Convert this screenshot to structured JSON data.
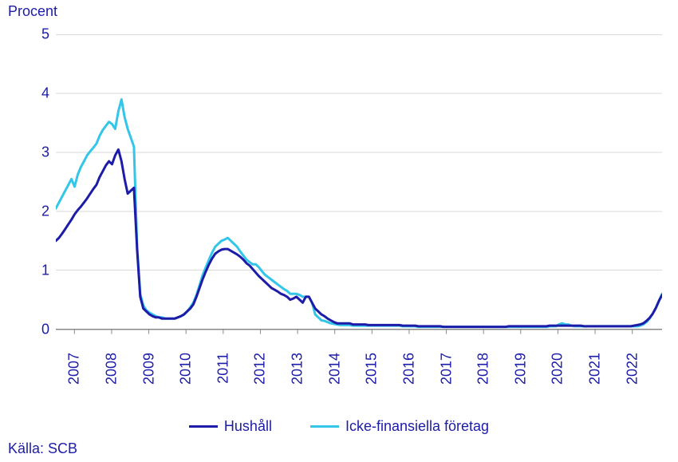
{
  "chart": {
    "type": "line",
    "y_title": "Procent",
    "source_label": "Källa: SCB",
    "title_color": "#1c1ca8",
    "title_fontsize": 18,
    "label_fontsize": 18,
    "background_color": "#ffffff",
    "plot_background": "#ffffff",
    "grid_color": "#d9d9d9",
    "axis_color": "#888888",
    "line_width": 3,
    "x_start_year": 2006.5,
    "x_end_year": 2022.8,
    "x_tick_years": [
      2007,
      2008,
      2009,
      2010,
      2011,
      2012,
      2013,
      2014,
      2015,
      2016,
      2017,
      2018,
      2019,
      2020,
      2021,
      2022
    ],
    "ylim": [
      -0.25,
      5.1
    ],
    "y_ticks": [
      0,
      1,
      2,
      3,
      4,
      5
    ],
    "legend": {
      "series_a_label": "Hushåll",
      "series_b_label": "Icke-finansiella företag"
    },
    "series_a": {
      "name": "Hushåll",
      "color": "#1c1ca8",
      "values": [
        1.5,
        1.55,
        1.62,
        1.7,
        1.78,
        1.86,
        1.95,
        2.02,
        2.08,
        2.15,
        2.22,
        2.3,
        2.38,
        2.45,
        2.58,
        2.68,
        2.78,
        2.85,
        2.8,
        2.95,
        3.05,
        2.85,
        2.55,
        2.3,
        2.35,
        2.4,
        1.35,
        0.55,
        0.35,
        0.3,
        0.25,
        0.22,
        0.2,
        0.2,
        0.18,
        0.18,
        0.18,
        0.18,
        0.18,
        0.2,
        0.22,
        0.25,
        0.3,
        0.35,
        0.42,
        0.55,
        0.7,
        0.85,
        0.98,
        1.1,
        1.2,
        1.28,
        1.32,
        1.35,
        1.36,
        1.36,
        1.33,
        1.3,
        1.27,
        1.23,
        1.18,
        1.12,
        1.08,
        1.02,
        0.96,
        0.9,
        0.85,
        0.8,
        0.75,
        0.7,
        0.67,
        0.64,
        0.6,
        0.58,
        0.55,
        0.5,
        0.52,
        0.55,
        0.5,
        0.45,
        0.55,
        0.55,
        0.45,
        0.35,
        0.3,
        0.25,
        0.22,
        0.18,
        0.15,
        0.12,
        0.1,
        0.1,
        0.1,
        0.1,
        0.1,
        0.08,
        0.08,
        0.08,
        0.08,
        0.08,
        0.07,
        0.07,
        0.07,
        0.07,
        0.07,
        0.07,
        0.07,
        0.07,
        0.07,
        0.07,
        0.07,
        0.06,
        0.06,
        0.06,
        0.06,
        0.06,
        0.05,
        0.05,
        0.05,
        0.05,
        0.05,
        0.05,
        0.05,
        0.05,
        0.04,
        0.04,
        0.04,
        0.04,
        0.04,
        0.04,
        0.04,
        0.04,
        0.04,
        0.04,
        0.04,
        0.04,
        0.04,
        0.04,
        0.04,
        0.04,
        0.04,
        0.04,
        0.04,
        0.04,
        0.04,
        0.05,
        0.05,
        0.05,
        0.05,
        0.05,
        0.05,
        0.05,
        0.05,
        0.05,
        0.05,
        0.05,
        0.05,
        0.05,
        0.06,
        0.06,
        0.06,
        0.06,
        0.06,
        0.06,
        0.06,
        0.06,
        0.06,
        0.06,
        0.06,
        0.05,
        0.05,
        0.05,
        0.05,
        0.05,
        0.05,
        0.05,
        0.05,
        0.05,
        0.05,
        0.05,
        0.05,
        0.05,
        0.05,
        0.05,
        0.05,
        0.06,
        0.07,
        0.08,
        0.1,
        0.14,
        0.19,
        0.26,
        0.36,
        0.48,
        0.58
      ]
    },
    "series_b": {
      "name": "Icke-finansiella företag",
      "color": "#33c6e8",
      "values": [
        2.05,
        2.15,
        2.25,
        2.35,
        2.45,
        2.55,
        2.42,
        2.62,
        2.75,
        2.85,
        2.95,
        3.02,
        3.08,
        3.15,
        3.28,
        3.38,
        3.45,
        3.52,
        3.48,
        3.4,
        3.7,
        3.9,
        3.6,
        3.4,
        3.25,
        3.1,
        1.4,
        0.6,
        0.4,
        0.32,
        0.28,
        0.25,
        0.22,
        0.2,
        0.2,
        0.18,
        0.18,
        0.18,
        0.18,
        0.2,
        0.22,
        0.25,
        0.3,
        0.37,
        0.45,
        0.58,
        0.75,
        0.92,
        1.05,
        1.18,
        1.3,
        1.4,
        1.45,
        1.5,
        1.52,
        1.55,
        1.5,
        1.45,
        1.4,
        1.32,
        1.25,
        1.18,
        1.14,
        1.1,
        1.1,
        1.05,
        0.98,
        0.92,
        0.88,
        0.84,
        0.8,
        0.76,
        0.72,
        0.68,
        0.65,
        0.6,
        0.6,
        0.6,
        0.58,
        0.55,
        0.55,
        0.55,
        0.45,
        0.25,
        0.2,
        0.15,
        0.14,
        0.12,
        0.1,
        0.09,
        0.08,
        0.07,
        0.07,
        0.07,
        0.07,
        0.06,
        0.06,
        0.06,
        0.06,
        0.06,
        0.06,
        0.06,
        0.06,
        0.06,
        0.06,
        0.06,
        0.06,
        0.06,
        0.06,
        0.06,
        0.06,
        0.05,
        0.05,
        0.05,
        0.05,
        0.05,
        0.04,
        0.04,
        0.04,
        0.04,
        0.04,
        0.04,
        0.04,
        0.04,
        0.04,
        0.04,
        0.04,
        0.04,
        0.04,
        0.04,
        0.04,
        0.04,
        0.04,
        0.04,
        0.04,
        0.04,
        0.04,
        0.04,
        0.04,
        0.04,
        0.04,
        0.04,
        0.04,
        0.04,
        0.04,
        0.04,
        0.04,
        0.04,
        0.04,
        0.04,
        0.04,
        0.04,
        0.04,
        0.04,
        0.04,
        0.04,
        0.04,
        0.04,
        0.05,
        0.05,
        0.05,
        0.08,
        0.1,
        0.08,
        0.08,
        0.06,
        0.05,
        0.05,
        0.05,
        0.05,
        0.05,
        0.05,
        0.05,
        0.05,
        0.05,
        0.05,
        0.05,
        0.05,
        0.05,
        0.05,
        0.05,
        0.05,
        0.05,
        0.05,
        0.05,
        0.05,
        0.05,
        0.06,
        0.08,
        0.12,
        0.18,
        0.26,
        0.36,
        0.48,
        0.6
      ]
    }
  }
}
